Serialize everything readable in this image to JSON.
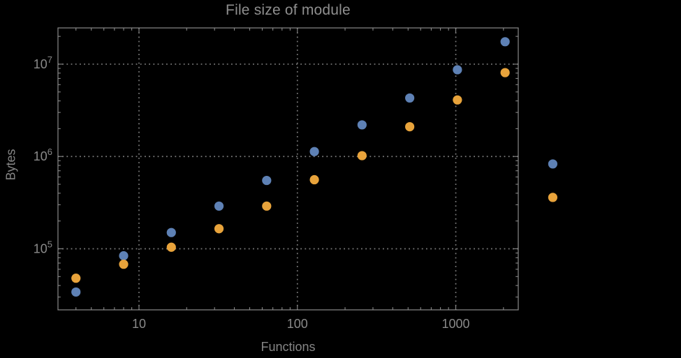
{
  "chart_data": {
    "type": "scatter",
    "title": "File size of module",
    "xlabel": "Functions",
    "ylabel": "Bytes",
    "xscale": "log",
    "yscale": "log",
    "xlim": [
      3.08,
      2480
    ],
    "ylim": [
      21800,
      24700000
    ],
    "grid": "dotted lines at every decade, both axes",
    "legend": "none",
    "clip_points_to_frame": false,
    "x": [
      4,
      8,
      16,
      32,
      64,
      128,
      256,
      512,
      1024,
      2048,
      4096
    ],
    "series": [
      {
        "name": "blue",
        "color": "#5E81B5",
        "values": [
          34000,
          84000,
          150000,
          290000,
          550000,
          1130000,
          2200000,
          4300000,
          8700000,
          17500000,
          830000
        ]
      },
      {
        "name": "orange",
        "color": "#E8A33B",
        "values": [
          48000,
          68000,
          104000,
          165000,
          290000,
          560000,
          1020000,
          2100000,
          4100000,
          8100000,
          360000
        ]
      }
    ],
    "x_ticks": [
      {
        "v": 10,
        "label": "10"
      },
      {
        "v": 100,
        "label": "100"
      },
      {
        "v": 1000,
        "label": "1000"
      }
    ],
    "y_ticks": [
      {
        "v": 100000,
        "base": "10",
        "exp": "5"
      },
      {
        "v": 1000000,
        "base": "10",
        "exp": "6"
      },
      {
        "v": 10000000,
        "base": "10",
        "exp": "7"
      }
    ],
    "colors": {
      "background": "#000000",
      "frame": "#8a8a8a",
      "grid": "#7d7d7d",
      "tick_label": "#8a8a8a",
      "title_text": "#8f8f8f",
      "axis_label_text": "#858585"
    }
  }
}
